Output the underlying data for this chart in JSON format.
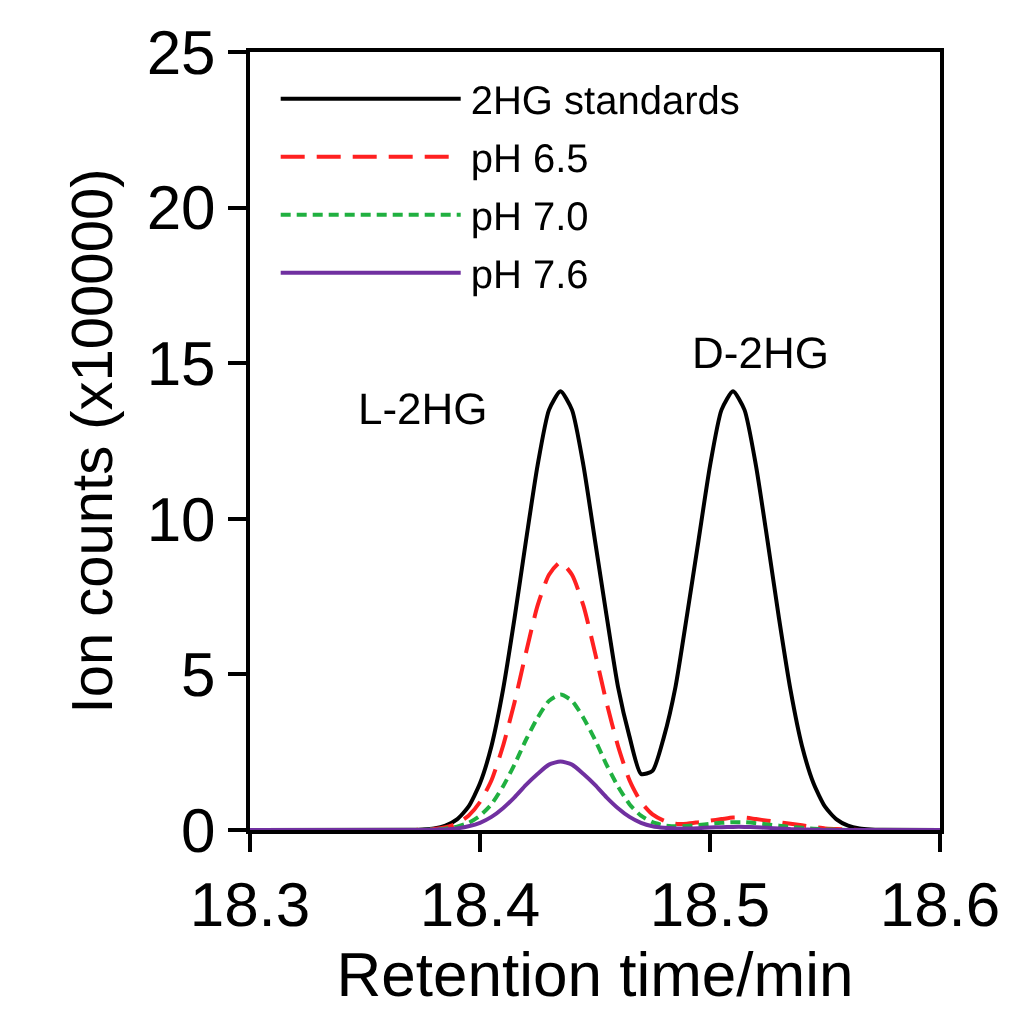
{
  "chart_data": {
    "type": "line",
    "xlabel": "Retention time/min",
    "ylabel": "Ion counts (x100000)",
    "x": [
      18.3,
      18.37,
      18.375,
      18.38,
      18.385,
      18.39,
      18.395,
      18.4,
      18.405,
      18.41,
      18.415,
      18.42,
      18.425,
      18.43,
      18.435,
      18.44,
      18.445,
      18.45,
      18.455,
      18.46,
      18.465,
      18.47,
      18.475,
      18.48,
      18.485,
      18.49,
      18.495,
      18.5,
      18.505,
      18.51,
      18.515,
      18.52,
      18.525,
      18.53,
      18.535,
      18.54,
      18.545,
      18.55,
      18.555,
      18.56,
      18.565,
      18.57,
      18.575,
      18.6
    ],
    "series": [
      {
        "name": "2HG standards",
        "color": "#000000",
        "line_style": "solid",
        "values": [
          0,
          0.01,
          0.02,
          0.05,
          0.14,
          0.34,
          0.75,
          1.5,
          2.7,
          4.5,
          6.8,
          9.3,
          11.7,
          13.5,
          14.1,
          13.5,
          11.7,
          9.3,
          6.9,
          4.6,
          3.0,
          1.8,
          1.9,
          3.0,
          4.6,
          6.9,
          9.3,
          11.7,
          13.5,
          14.1,
          13.5,
          11.7,
          9.3,
          6.8,
          4.5,
          2.7,
          1.5,
          0.75,
          0.34,
          0.14,
          0.05,
          0.02,
          0.01,
          0
        ]
      },
      {
        "name": "pH 6.5",
        "color": "#ff2020",
        "line_style": "dashed",
        "values": [
          0,
          0,
          0.01,
          0.03,
          0.09,
          0.21,
          0.46,
          0.9,
          1.6,
          2.7,
          4.1,
          5.7,
          7.2,
          8.2,
          8.6,
          8.2,
          7.2,
          5.7,
          4.1,
          2.7,
          1.6,
          0.9,
          0.5,
          0.3,
          0.2,
          0.2,
          0.25,
          0.3,
          0.35,
          0.4,
          0.4,
          0.35,
          0.3,
          0.25,
          0.2,
          0.15,
          0.1,
          0.05,
          0.03,
          0.01,
          0,
          0,
          null,
          null
        ]
      },
      {
        "name": "pH 7.0",
        "color": "#20b040",
        "line_style": "dotted",
        "values": [
          null,
          null,
          0,
          0.02,
          0.04,
          0.11,
          0.23,
          0.46,
          0.83,
          1.4,
          2.1,
          2.9,
          3.6,
          4.15,
          4.35,
          4.15,
          3.6,
          2.9,
          2.1,
          1.4,
          0.83,
          0.46,
          0.25,
          0.15,
          0.12,
          0.13,
          0.16,
          0.2,
          0.23,
          0.25,
          0.25,
          0.22,
          0.18,
          0.14,
          0.1,
          0.07,
          0.04,
          0.02,
          0.01,
          0,
          null,
          null,
          null,
          null
        ]
      },
      {
        "name": "pH 7.6",
        "color": "#7030a0",
        "line_style": "solid",
        "values": [
          0,
          0,
          0,
          0.01,
          0.02,
          0.05,
          0.12,
          0.23,
          0.42,
          0.7,
          1.05,
          1.45,
          1.8,
          2.1,
          2.2,
          2.1,
          1.8,
          1.45,
          1.05,
          0.7,
          0.42,
          0.23,
          0.12,
          0.07,
          0.05,
          0.05,
          0.06,
          0.08,
          0.09,
          0.1,
          0.1,
          0.09,
          0.07,
          0.05,
          0.03,
          0.02,
          0.01,
          0,
          0,
          0,
          0,
          0,
          0,
          0
        ]
      }
    ],
    "xlim": [
      18.3,
      18.6
    ],
    "xticks": [
      18.3,
      18.4,
      18.5,
      18.6
    ],
    "ylim": [
      0,
      25
    ],
    "yticks": [
      0,
      5,
      10,
      15,
      20,
      25
    ],
    "grid": false,
    "legend": "top left",
    "marker": "none",
    "annotations": [
      "L-2HG",
      "D-2HG"
    ]
  }
}
